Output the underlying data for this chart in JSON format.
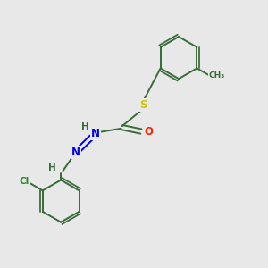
{
  "background_color": "#e8e8e8",
  "bond_color": "#3a6b3a",
  "atom_colors": {
    "S": "#cccc00",
    "O": "#ff2200",
    "N": "#0000ee",
    "Cl": "#228822",
    "H": "#3a6b3a",
    "C": "#3a6b3a"
  },
  "figsize": [
    3.0,
    3.0
  ],
  "dpi": 100
}
